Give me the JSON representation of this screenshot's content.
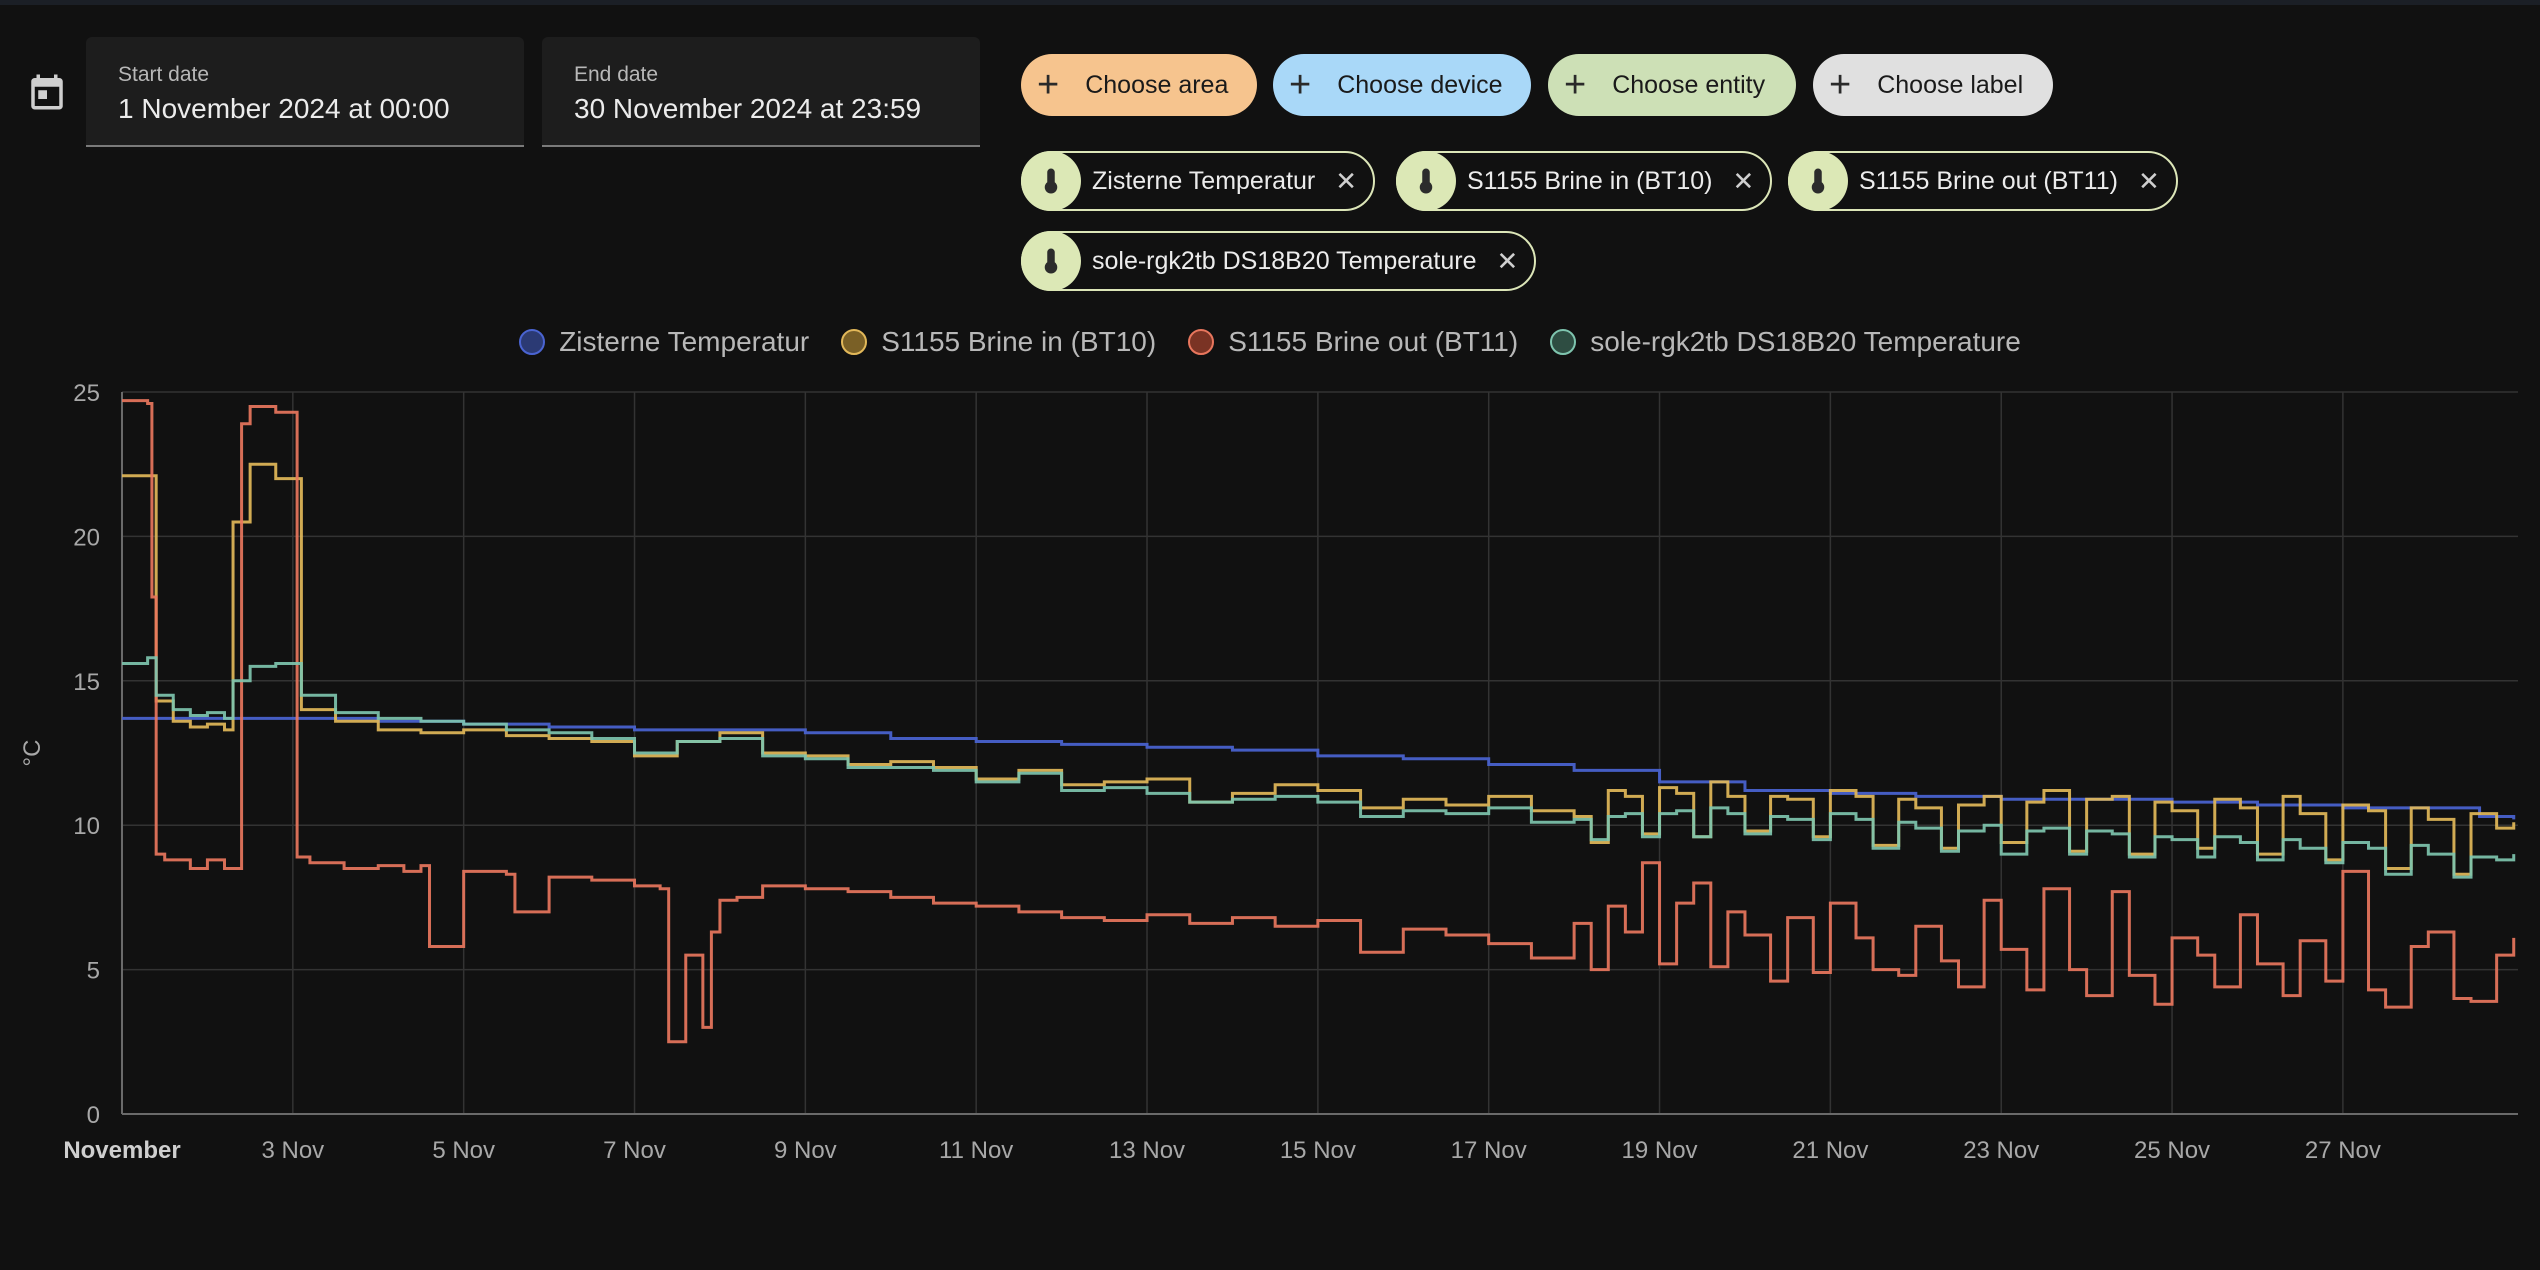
{
  "date_range": {
    "start_label": "Start date",
    "start_value": "1 November 2024 at 00:00",
    "end_label": "End date",
    "end_value": "30 November 2024 at 23:59"
  },
  "pickers": [
    {
      "label": "Choose area",
      "color": "#f6c48e"
    },
    {
      "label": "Choose device",
      "color": "#a9d8f8"
    },
    {
      "label": "Choose entity",
      "color": "#cde0b6"
    },
    {
      "label": "Choose label",
      "color": "#e0e0e0"
    }
  ],
  "entities": [
    {
      "name": "Zisterne Temperatur",
      "icon": "thermometer-icon"
    },
    {
      "name": "S1155 Brine in (BT10)",
      "icon": "thermometer-icon"
    },
    {
      "name": "S1155 Brine out (BT11)",
      "icon": "thermometer-icon"
    },
    {
      "name": "sole-rgk2tb DS18B20 Temperature",
      "icon": "thermometer-icon"
    }
  ],
  "chart_data": {
    "type": "line",
    "title": "",
    "ylabel": "°C",
    "ylim": [
      0,
      25
    ],
    "yticks": [
      0,
      5,
      10,
      15,
      20,
      25
    ],
    "xlim": [
      1,
      29.05
    ],
    "xticks": [
      {
        "x": 1,
        "label": "November",
        "bold": true
      },
      {
        "x": 3,
        "label": "3 Nov"
      },
      {
        "x": 5,
        "label": "5 Nov"
      },
      {
        "x": 7,
        "label": "7 Nov"
      },
      {
        "x": 9,
        "label": "9 Nov"
      },
      {
        "x": 11,
        "label": "11 Nov"
      },
      {
        "x": 13,
        "label": "13 Nov"
      },
      {
        "x": 15,
        "label": "15 Nov"
      },
      {
        "x": 17,
        "label": "17 Nov"
      },
      {
        "x": 19,
        "label": "19 Nov"
      },
      {
        "x": 21,
        "label": "21 Nov"
      },
      {
        "x": 23,
        "label": "23 Nov"
      },
      {
        "x": 25,
        "label": "25 Nov"
      },
      {
        "x": 27,
        "label": "27 Nov"
      }
    ],
    "grid": true,
    "legend_position": "top-center",
    "series": [
      {
        "name": "Zisterne Temperatur",
        "color": "#4a64d2",
        "legend_fill": "#2b3a74",
        "x": [
          1.0,
          2.5,
          3.0,
          4.0,
          5.0,
          6.0,
          7.0,
          8.0,
          9.0,
          10.0,
          11.0,
          12.0,
          13.0,
          14.0,
          15.0,
          16.0,
          17.0,
          18.0,
          19.0,
          20.0,
          21.0,
          22.0,
          23.0,
          24.0,
          25.0,
          26.0,
          27.0,
          28.0,
          28.6,
          29.0
        ],
        "y": [
          13.7,
          13.7,
          13.7,
          13.6,
          13.5,
          13.4,
          13.3,
          13.3,
          13.2,
          13.0,
          12.9,
          12.8,
          12.7,
          12.6,
          12.4,
          12.3,
          12.1,
          11.9,
          11.5,
          11.2,
          11.1,
          11.0,
          10.9,
          10.9,
          10.8,
          10.7,
          10.6,
          10.6,
          10.3,
          10.2
        ]
      },
      {
        "name": "S1155 Brine in (BT10)",
        "color": "#e2b859",
        "legend_fill": "#7a6026",
        "x": [
          1.0,
          1.3,
          1.4,
          1.6,
          1.8,
          2.0,
          2.2,
          2.3,
          2.5,
          2.8,
          3.0,
          3.1,
          3.5,
          4.0,
          4.5,
          5.0,
          5.5,
          6.0,
          6.5,
          7.0,
          7.5,
          8.0,
          8.5,
          9.0,
          9.5,
          10.0,
          10.5,
          11.0,
          11.5,
          12.0,
          12.5,
          13.0,
          13.5,
          14.0,
          14.5,
          15.0,
          15.5,
          16.0,
          16.5,
          17.0,
          17.5,
          18.0,
          18.2,
          18.4,
          18.6,
          18.8,
          19.0,
          19.2,
          19.4,
          19.6,
          19.8,
          20.0,
          20.3,
          20.5,
          20.8,
          21.0,
          21.3,
          21.5,
          21.8,
          22.0,
          22.3,
          22.5,
          22.8,
          23.0,
          23.3,
          23.5,
          23.8,
          24.0,
          24.3,
          24.5,
          24.8,
          25.0,
          25.3,
          25.5,
          25.8,
          26.0,
          26.3,
          26.5,
          26.8,
          27.0,
          27.3,
          27.5,
          27.8,
          28.0,
          28.3,
          28.5,
          28.8,
          29.0
        ],
        "y": [
          22.1,
          22.1,
          14.3,
          13.6,
          13.4,
          13.5,
          13.3,
          20.5,
          22.5,
          22.0,
          22.0,
          14.0,
          13.6,
          13.3,
          13.2,
          13.3,
          13.1,
          13.0,
          12.9,
          12.4,
          12.9,
          13.2,
          12.5,
          12.4,
          12.1,
          12.2,
          12.0,
          11.6,
          11.9,
          11.4,
          11.5,
          11.6,
          10.8,
          11.1,
          11.4,
          11.2,
          10.6,
          10.9,
          10.7,
          11.0,
          10.5,
          10.3,
          9.4,
          11.2,
          11.0,
          9.7,
          11.3,
          11.1,
          9.6,
          11.5,
          11.0,
          9.8,
          11.0,
          10.9,
          9.6,
          11.2,
          11.0,
          9.3,
          10.9,
          10.6,
          9.2,
          10.7,
          11.0,
          9.4,
          10.8,
          11.2,
          9.1,
          10.9,
          11.0,
          9.0,
          10.8,
          10.5,
          9.2,
          10.9,
          10.6,
          9.0,
          11.0,
          10.4,
          8.8,
          10.7,
          10.5,
          8.5,
          10.6,
          10.2,
          8.3,
          10.4,
          9.9,
          10.1
        ]
      },
      {
        "name": "S1155 Brine out (BT11)",
        "color": "#e8765d",
        "legend_fill": "#7a3324",
        "x": [
          1.0,
          1.3,
          1.35,
          1.4,
          1.5,
          1.8,
          2.0,
          2.2,
          2.4,
          2.5,
          2.8,
          3.0,
          3.05,
          3.2,
          3.6,
          4.0,
          4.3,
          4.5,
          4.6,
          5.0,
          5.5,
          5.6,
          6.0,
          6.5,
          7.0,
          7.3,
          7.4,
          7.6,
          7.8,
          7.9,
          8.0,
          8.2,
          8.5,
          9.0,
          9.5,
          10.0,
          10.5,
          11.0,
          11.5,
          12.0,
          12.5,
          13.0,
          13.5,
          14.0,
          14.5,
          15.0,
          15.5,
          16.0,
          16.5,
          17.0,
          17.5,
          18.0,
          18.2,
          18.4,
          18.6,
          18.8,
          19.0,
          19.2,
          19.4,
          19.6,
          19.8,
          20.0,
          20.3,
          20.5,
          20.8,
          21.0,
          21.3,
          21.5,
          21.8,
          22.0,
          22.3,
          22.5,
          22.8,
          23.0,
          23.3,
          23.5,
          23.8,
          24.0,
          24.3,
          24.5,
          24.8,
          25.0,
          25.3,
          25.5,
          25.8,
          26.0,
          26.3,
          26.5,
          26.8,
          27.0,
          27.3,
          27.5,
          27.8,
          28.0,
          28.3,
          28.5,
          28.8,
          29.0
        ],
        "y": [
          24.7,
          24.6,
          17.9,
          9.0,
          8.8,
          8.5,
          8.8,
          8.5,
          23.9,
          24.5,
          24.3,
          24.3,
          8.9,
          8.7,
          8.5,
          8.6,
          8.4,
          8.6,
          5.8,
          8.4,
          8.3,
          7.0,
          8.2,
          8.1,
          7.9,
          7.8,
          2.5,
          5.5,
          3.0,
          6.3,
          7.4,
          7.5,
          7.9,
          7.8,
          7.7,
          7.5,
          7.3,
          7.2,
          7.0,
          6.8,
          6.7,
          6.9,
          6.6,
          6.8,
          6.5,
          6.7,
          5.6,
          6.4,
          6.2,
          5.9,
          5.4,
          6.6,
          5.0,
          7.2,
          6.3,
          8.7,
          5.2,
          7.3,
          8.0,
          5.1,
          7.0,
          6.2,
          4.6,
          6.8,
          4.9,
          7.3,
          6.1,
          5.0,
          4.8,
          6.5,
          5.3,
          4.4,
          7.4,
          5.7,
          4.3,
          7.8,
          5.0,
          4.1,
          7.7,
          4.8,
          3.8,
          6.1,
          5.5,
          4.4,
          6.9,
          5.2,
          4.1,
          6.0,
          4.6,
          8.4,
          4.3,
          3.7,
          5.8,
          6.3,
          4.0,
          3.9,
          5.5,
          6.1
        ]
      },
      {
        "name": "sole-rgk2tb DS18B20 Temperature",
        "color": "#7ec4ae",
        "legend_fill": "#2e4d42",
        "x": [
          1.0,
          1.3,
          1.4,
          1.6,
          1.8,
          2.0,
          2.2,
          2.3,
          2.5,
          2.8,
          3.0,
          3.1,
          3.5,
          4.0,
          4.5,
          5.0,
          5.5,
          6.0,
          6.5,
          7.0,
          7.5,
          8.0,
          8.5,
          9.0,
          9.5,
          10.0,
          10.5,
          11.0,
          11.5,
          12.0,
          12.5,
          13.0,
          13.5,
          14.0,
          14.5,
          15.0,
          15.5,
          16.0,
          16.5,
          17.0,
          17.5,
          18.0,
          18.2,
          18.4,
          18.6,
          18.8,
          19.0,
          19.2,
          19.4,
          19.6,
          19.8,
          20.0,
          20.3,
          20.5,
          20.8,
          21.0,
          21.3,
          21.5,
          21.8,
          22.0,
          22.3,
          22.5,
          22.8,
          23.0,
          23.3,
          23.5,
          23.8,
          24.0,
          24.3,
          24.5,
          24.8,
          25.0,
          25.3,
          25.5,
          25.8,
          26.0,
          26.3,
          26.5,
          26.8,
          27.0,
          27.3,
          27.5,
          27.8,
          28.0,
          28.3,
          28.5,
          28.8,
          29.0
        ],
        "y": [
          15.6,
          15.8,
          14.5,
          14.0,
          13.8,
          13.9,
          13.7,
          15.0,
          15.5,
          15.6,
          15.6,
          14.5,
          13.9,
          13.7,
          13.6,
          13.5,
          13.3,
          13.2,
          13.0,
          12.5,
          12.9,
          13.0,
          12.4,
          12.3,
          12.0,
          12.0,
          11.9,
          11.5,
          11.8,
          11.2,
          11.3,
          11.1,
          10.8,
          10.9,
          11.0,
          10.8,
          10.3,
          10.5,
          10.4,
          10.6,
          10.1,
          10.2,
          9.5,
          10.3,
          10.4,
          9.6,
          10.4,
          10.5,
          9.6,
          10.6,
          10.4,
          9.7,
          10.3,
          10.2,
          9.5,
          10.4,
          10.2,
          9.2,
          10.1,
          9.9,
          9.1,
          9.8,
          10.0,
          9.0,
          9.8,
          9.9,
          9.0,
          9.8,
          9.7,
          8.9,
          9.6,
          9.5,
          8.9,
          9.6,
          9.4,
          8.8,
          9.5,
          9.2,
          8.7,
          9.4,
          9.2,
          8.3,
          9.3,
          9.0,
          8.2,
          8.9,
          8.8,
          9.0
        ]
      }
    ]
  }
}
